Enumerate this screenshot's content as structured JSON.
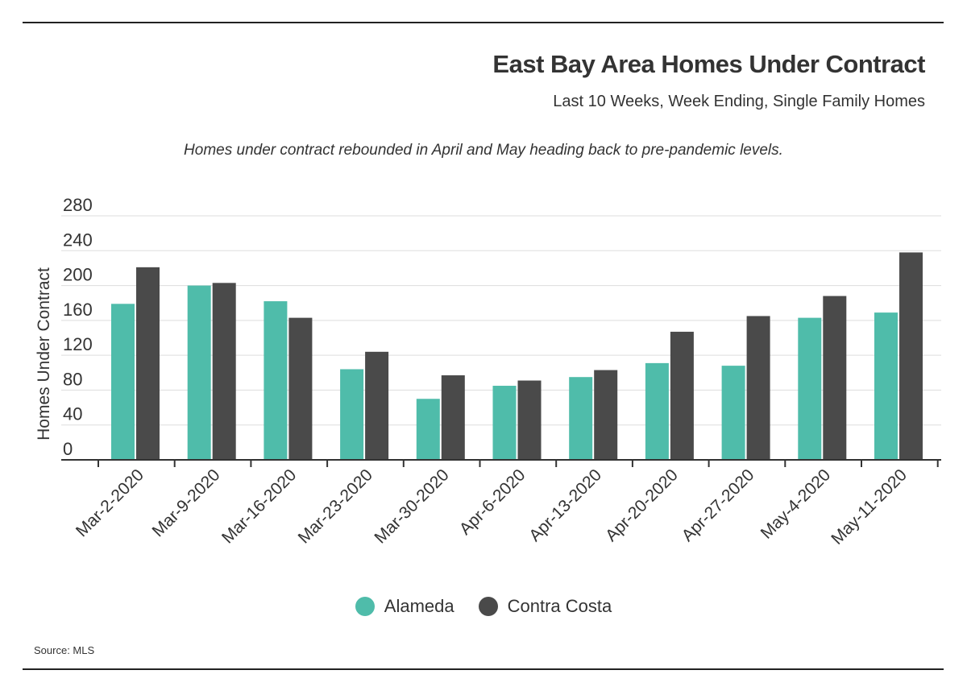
{
  "header": {
    "title": "East Bay Area Homes Under Contract",
    "subtitle": "Last 10 Weeks, Week Ending, Single Family Homes",
    "note": "Homes under contract rebounded in April and May heading back to pre-pandemic levels."
  },
  "footer": {
    "source": "Source: MLS"
  },
  "chart_data": {
    "type": "bar",
    "title": "East Bay Area Homes Under Contract",
    "subtitle": "Last 10 Weeks, Week Ending, Single Family Homes",
    "xlabel": "",
    "ylabel": "Homes Under Contract",
    "ylim": [
      0,
      280
    ],
    "yticks": [
      0,
      40,
      80,
      120,
      160,
      200,
      240,
      280
    ],
    "grid": true,
    "legend_position": "bottom",
    "categories": [
      "Mar-2-2020",
      "Mar-9-2020",
      "Mar-16-2020",
      "Mar-23-2020",
      "Mar-30-2020",
      "Apr-6-2020",
      "Apr-13-2020",
      "Apr-20-2020",
      "Apr-27-2020",
      "May-4-2020",
      "May-11-2020"
    ],
    "series": [
      {
        "name": "Alameda",
        "color": "#4fbcaa",
        "values": [
          179,
          200,
          182,
          104,
          70,
          85,
          95,
          111,
          108,
          163,
          169
        ]
      },
      {
        "name": "Contra Costa",
        "color": "#4a4a4a",
        "values": [
          221,
          203,
          163,
          124,
          97,
          91,
          103,
          147,
          165,
          188,
          238
        ]
      }
    ]
  }
}
